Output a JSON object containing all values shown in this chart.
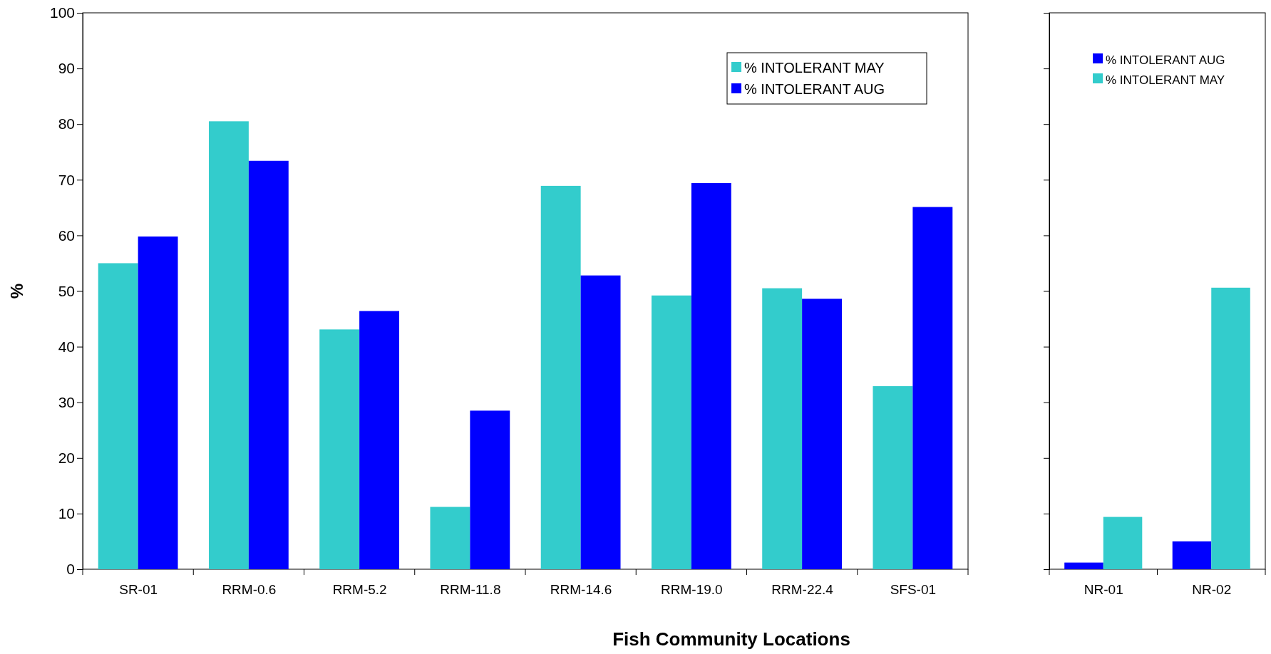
{
  "chart_data": [
    {
      "type": "bar",
      "xlabel": "Fish Community Locations",
      "ylabel": "%",
      "categories": [
        "SR-01",
        "RRM-0.6",
        "RRM-5.2",
        "RRM-11.8",
        "RRM-14.6",
        "RRM-19.0",
        "RRM-22.4",
        "SFS-01"
      ],
      "series": [
        {
          "name": "% INTOLERANT MAY",
          "color": "#33cccc",
          "values": [
            55,
            80.5,
            43.1,
            11.2,
            68.9,
            49.2,
            50.5,
            32.9
          ]
        },
        {
          "name": "% INTOLERANT AUG",
          "color": "#0000ff",
          "values": [
            59.8,
            73.4,
            46.4,
            28.5,
            52.8,
            69.4,
            48.6,
            65.1
          ]
        }
      ],
      "ylim": [
        0,
        100
      ],
      "yticks": [
        0,
        10,
        20,
        30,
        40,
        50,
        60,
        70,
        80,
        90,
        100
      ],
      "legend": "top right"
    },
    {
      "type": "bar",
      "categories": [
        "NR-01",
        "NR-02"
      ],
      "series": [
        {
          "name": "% INTOLERANT AUG",
          "color": "#0000ff",
          "values": [
            1.2,
            5.0
          ]
        },
        {
          "name": "% INTOLERANT MAY",
          "color": "#33cccc",
          "values": [
            9.4,
            50.6
          ]
        }
      ],
      "ylim": [
        0,
        100
      ],
      "yticks": [
        {
          "value": 0,
          "label": null
        },
        {
          "value": 10,
          "label": null
        },
        {
          "value": 20,
          "label": null
        },
        {
          "value": 30,
          "label": null
        },
        {
          "value": 40,
          "label": null
        },
        {
          "value": 50,
          "label": null
        },
        {
          "value": 60,
          "label": null
        },
        {
          "value": 70,
          "label": null
        },
        {
          "value": 80,
          "label": null
        },
        {
          "value": 90,
          "label": null
        },
        {
          "value": 100,
          "label": null
        }
      ],
      "tick_labels": "x",
      "legend": "top left"
    }
  ]
}
